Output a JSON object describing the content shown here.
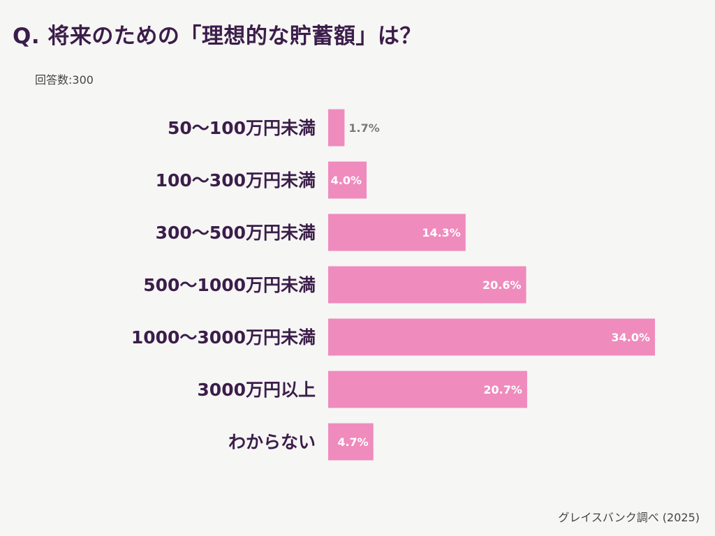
{
  "chart_data": {
    "type": "bar",
    "orientation": "horizontal",
    "title": "Q. 将来のための「理想的な貯蓄額」は？",
    "note": "回答数:300",
    "source": "グレイスバンク調べ (2025)",
    "categories": [
      "50〜100万円未満",
      "100〜300万円未満",
      "300〜500万円未満",
      "500〜1000万円未満",
      "1000〜3000万円未満",
      "3000万円以上",
      "わからない"
    ],
    "values": [
      1.7,
      4.0,
      14.3,
      20.6,
      34.0,
      20.7,
      4.7
    ],
    "value_labels": [
      "1.7%",
      "4.0%",
      "14.3%",
      "20.6%",
      "34.0%",
      "20.7%",
      "4.7%"
    ],
    "unit": "%",
    "xlim": [
      0,
      34.0
    ],
    "grid": false,
    "colors": {
      "bar": "#ef8bbd",
      "label": "#3b1d4a",
      "value_inside": "#ffffff",
      "value_outside": "#7a7a7a",
      "background": "#f6f6f4"
    }
  }
}
